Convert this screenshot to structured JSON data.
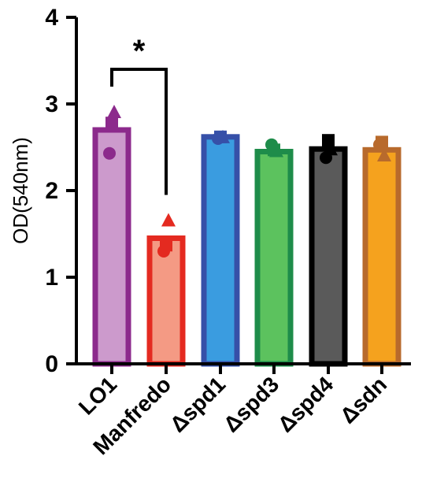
{
  "chart_data": {
    "type": "bar",
    "ylabel": "OD(540nm)",
    "xlabel": "",
    "ylim": [
      0,
      4
    ],
    "yticks": [
      "0",
      "1",
      "2",
      "3",
      "4"
    ],
    "categories": [
      "LO1",
      "Manfredo",
      "Δspd1",
      "Δspd3",
      "Δspd4",
      "Δsdn"
    ],
    "values": [
      2.7,
      1.45,
      2.62,
      2.45,
      2.48,
      2.47
    ],
    "replicates": [
      [
        {
          "shape": "circle",
          "value": 2.43
        },
        {
          "shape": "square",
          "value": 2.78
        },
        {
          "shape": "triangle",
          "value": 2.9
        }
      ],
      [
        {
          "shape": "circle",
          "value": 1.3
        },
        {
          "shape": "square",
          "value": 1.37
        },
        {
          "shape": "triangle",
          "value": 1.65
        }
      ],
      [
        {
          "shape": "circle",
          "value": 2.6
        },
        {
          "shape": "square",
          "value": 2.62
        },
        {
          "shape": "triangle",
          "value": 2.61
        }
      ],
      [
        {
          "shape": "circle",
          "value": 2.53
        },
        {
          "shape": "square",
          "value": 2.47
        },
        {
          "shape": "triangle",
          "value": 2.45
        }
      ],
      [
        {
          "shape": "circle",
          "value": 2.38
        },
        {
          "shape": "square",
          "value": 2.58
        },
        {
          "shape": "triangle",
          "value": 2.47
        }
      ],
      [
        {
          "shape": "circle",
          "value": 2.53
        },
        {
          "shape": "square",
          "value": 2.56
        },
        {
          "shape": "triangle",
          "value": 2.4
        }
      ]
    ],
    "colors": [
      {
        "fill": "#cc9acc",
        "stroke": "#8c2a8c"
      },
      {
        "fill": "#f49a84",
        "stroke": "#e42a20"
      },
      {
        "fill": "#3a9ce0",
        "stroke": "#3650a8"
      },
      {
        "fill": "#5cc25e",
        "stroke": "#1e8c4a"
      },
      {
        "fill": "#5a5a5a",
        "stroke": "#000000"
      },
      {
        "fill": "#f5a21e",
        "stroke": "#b86a2c"
      }
    ],
    "significance": {
      "label": "*",
      "from": 0,
      "to": 1
    },
    "grid": false,
    "legend": "none"
  }
}
